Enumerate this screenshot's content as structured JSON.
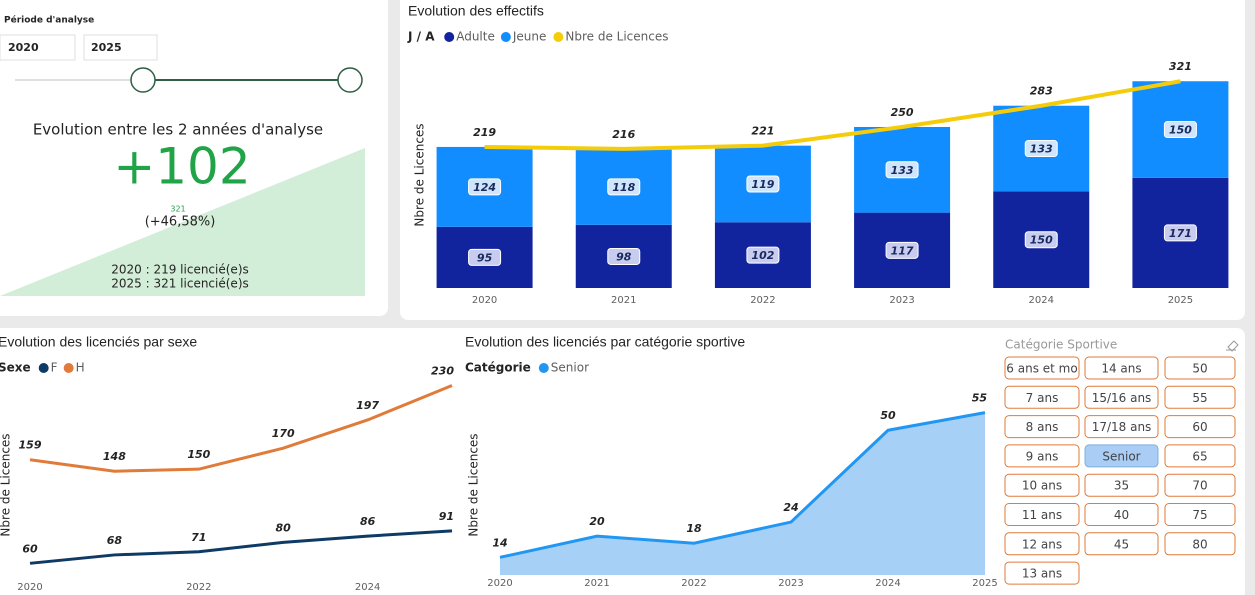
{
  "filter": {
    "label": "Période d'analyse",
    "start": "2020",
    "end": "2025"
  },
  "kpi": {
    "title": "Evolution entre les 2 années d'analyse",
    "value": "+102",
    "small": "321",
    "percent": "(+46,58%)",
    "line1": "2020 : 219 licencié(e)s",
    "line2": "2025 : 321 licencié(e)s"
  },
  "slicer": {
    "title": "Catégorie Sportive",
    "columns": [
      [
        "6 ans et mo",
        "7 ans",
        "8 ans",
        "9 ans",
        "10 ans",
        "11 ans",
        "12 ans",
        "13 ans"
      ],
      [
        "14 ans",
        "15/16 ans",
        "17/18 ans",
        {
          "label": "Senior",
          "selected": true
        },
        "35",
        "40",
        "45"
      ],
      [
        "50",
        "55",
        "60",
        "65",
        "70",
        "75",
        "80"
      ]
    ]
  },
  "chart_data": [
    {
      "type": "bar",
      "title": "Evolution des effectifs",
      "legend_title": "J / A",
      "y_label": "Nbre de Licences",
      "categories": [
        "2020",
        "2021",
        "2022",
        "2023",
        "2024",
        "2025"
      ],
      "ylim": [
        0,
        340
      ],
      "series": [
        {
          "name": "Adulte",
          "color": "#12239e",
          "values": [
            95,
            98,
            102,
            117,
            150,
            171
          ]
        },
        {
          "name": "Jeune",
          "color": "#118dff",
          "values": [
            124,
            118,
            119,
            133,
            133,
            150
          ]
        },
        {
          "name": "Nbre de Licences",
          "color": "#f5cc0a",
          "type": "line",
          "values": [
            219,
            216,
            221,
            250,
            283,
            321
          ]
        }
      ]
    },
    {
      "type": "line",
      "title": "Evolution des licenciés par sexe",
      "legend_title": "Sexe",
      "y_label": "Nbre de Licences",
      "x": [
        2020,
        2021,
        2022,
        2023,
        2024,
        2025
      ],
      "xlim": [
        2020,
        2025
      ],
      "xticks": [
        2020,
        2022,
        2024
      ],
      "ylim": [
        45,
        240
      ],
      "series": [
        {
          "name": "F",
          "color": "#0e3a66",
          "values": [
            60,
            68,
            71,
            80,
            86,
            91
          ]
        },
        {
          "name": "H",
          "color": "#e07b3a",
          "values": [
            159,
            148,
            150,
            170,
            197,
            230
          ]
        }
      ]
    },
    {
      "type": "area",
      "title": "Evolution des licenciés par catégorie sportive",
      "legend_title": "Catégorie",
      "y_label": "Nbre de Licences",
      "x": [
        2020,
        2021,
        2022,
        2023,
        2024,
        2025
      ],
      "xlim": [
        2020,
        2025
      ],
      "xticks": [
        2020,
        2021,
        2022,
        2023,
        2024,
        2025
      ],
      "ylim": [
        9,
        58
      ],
      "series": [
        {
          "name": "Senior",
          "color": "#2196f3",
          "values": [
            14,
            20,
            18,
            24,
            50,
            55
          ]
        }
      ]
    }
  ]
}
